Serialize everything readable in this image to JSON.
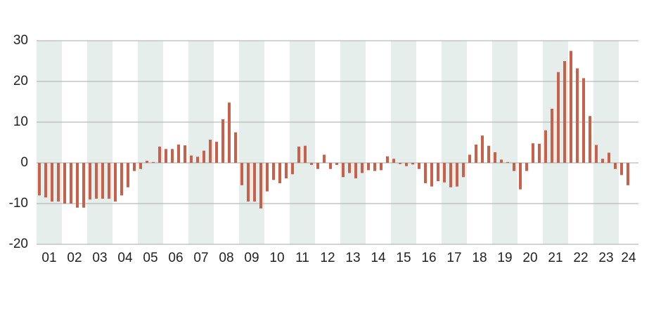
{
  "chart_data": {
    "type": "bar",
    "color": "#c8604a",
    "band_color": "#e5eeeb",
    "grid": true,
    "ylim": [
      -20,
      30
    ],
    "yticks": [
      -20,
      -10,
      0,
      10,
      20,
      30
    ],
    "groups": [
      {
        "label": "01",
        "values": [
          -8,
          -8.5,
          -9.5,
          -9.5
        ]
      },
      {
        "label": "02",
        "values": [
          -10,
          -10,
          -11,
          -11
        ]
      },
      {
        "label": "03",
        "values": [
          -9,
          -8.8,
          -8.8,
          -8.8
        ]
      },
      {
        "label": "04",
        "values": [
          -9.5,
          -8,
          -6,
          -2
        ]
      },
      {
        "label": "05",
        "values": [
          -1.5,
          0.5,
          0.2,
          4
        ]
      },
      {
        "label": "06",
        "values": [
          3.4,
          3.4,
          4.5,
          4.3
        ]
      },
      {
        "label": "07",
        "values": [
          1.8,
          1.5,
          3,
          5.7
        ]
      },
      {
        "label": "08",
        "values": [
          5.2,
          10.7,
          14.8,
          7.5
        ]
      },
      {
        "label": "09",
        "values": [
          -5.5,
          -9.5,
          -9.5,
          -11.2
        ]
      },
      {
        "label": "10",
        "values": [
          -7,
          -4.2,
          -5,
          -3.8
        ]
      },
      {
        "label": "11",
        "values": [
          -2.8,
          4,
          4.2,
          -0.5
        ]
      },
      {
        "label": "12",
        "values": [
          -1.5,
          2,
          -1.5,
          -0.5
        ]
      },
      {
        "label": "13",
        "values": [
          -3.5,
          -2.5,
          -3.8,
          -2.5
        ]
      },
      {
        "label": "14",
        "values": [
          -1.8,
          -2,
          -1.8,
          1.6
        ]
      },
      {
        "label": "15",
        "values": [
          1,
          -0.3,
          -0.8,
          -0.4
        ]
      },
      {
        "label": "16",
        "values": [
          -1.5,
          -5,
          -5.8,
          -4.5
        ]
      },
      {
        "label": "17",
        "values": [
          -4.8,
          -6,
          -5.8,
          -3.5
        ]
      },
      {
        "label": "18",
        "values": [
          2,
          4.5,
          6.7,
          4.2
        ]
      },
      {
        "label": "19",
        "values": [
          2.6,
          0.8,
          0.2,
          -2
        ]
      },
      {
        "label": "20",
        "values": [
          -6.5,
          -2,
          4.8,
          4.7
        ]
      },
      {
        "label": "21",
        "values": [
          8,
          13.3,
          22.3,
          25
        ]
      },
      {
        "label": "22",
        "values": [
          27.5,
          23.2,
          20.8,
          11.5
        ]
      },
      {
        "label": "23",
        "values": [
          4.4,
          1,
          2.5,
          -1.5
        ]
      },
      {
        "label": "24",
        "values": [
          -3,
          -5.5
        ]
      }
    ]
  }
}
